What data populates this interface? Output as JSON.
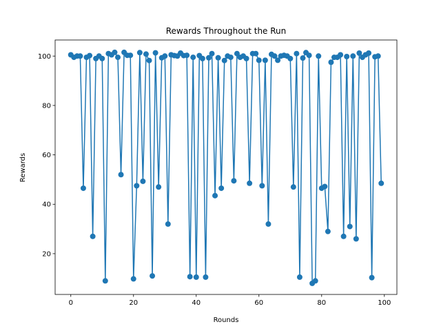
{
  "chart_data": {
    "type": "line",
    "title": "Rewards Throughout the Run",
    "xlabel": "Rounds",
    "ylabel": "Rewards",
    "xlim": [
      -5,
      104
    ],
    "ylim": [
      3.5,
      106.5
    ],
    "xticks": [
      0,
      20,
      40,
      60,
      80,
      100
    ],
    "yticks": [
      20,
      40,
      60,
      80,
      100
    ],
    "grid": false,
    "series": [
      {
        "color": "#1f77b4",
        "marker": "circle",
        "x": [
          0,
          1,
          2,
          3,
          4,
          5,
          6,
          7,
          8,
          9,
          10,
          11,
          12,
          13,
          14,
          15,
          16,
          17,
          18,
          19,
          20,
          21,
          22,
          23,
          24,
          25,
          26,
          27,
          28,
          29,
          30,
          31,
          32,
          33,
          34,
          35,
          36,
          37,
          38,
          39,
          40,
          41,
          42,
          43,
          44,
          45,
          46,
          47,
          48,
          49,
          50,
          51,
          52,
          53,
          54,
          55,
          56,
          57,
          58,
          59,
          60,
          61,
          62,
          63,
          64,
          65,
          66,
          67,
          68,
          69,
          70,
          71,
          72,
          73,
          74,
          75,
          76,
          77,
          78,
          79,
          80,
          81,
          82,
          83,
          84,
          85,
          86,
          87,
          88,
          89,
          90,
          91,
          92,
          93,
          94,
          95,
          96,
          97,
          98,
          99
        ],
        "y": [
          100.5,
          99.5,
          100,
          100,
          46.5,
          99.5,
          100.2,
          27,
          99,
          100,
          99,
          9,
          101,
          100.5,
          101.5,
          99.5,
          52,
          101.5,
          100.3,
          100.3,
          9.8,
          47.5,
          101.4,
          49.3,
          100.8,
          98.2,
          11,
          101.3,
          47,
          99.3,
          100,
          32,
          100.5,
          100.2,
          100,
          101.2,
          100.2,
          100.3,
          10.7,
          99.5,
          10.5,
          100.2,
          99,
          10.5,
          99.3,
          101,
          43.5,
          99.3,
          46.5,
          98.2,
          100,
          99.5,
          49.5,
          101,
          99.5,
          100,
          99,
          48.5,
          101,
          101,
          98.3,
          47.5,
          98.3,
          32,
          100.7,
          100,
          98.3,
          100,
          100.3,
          100,
          99,
          47,
          101,
          10.5,
          99.2,
          101.4,
          100.3,
          8,
          9,
          100,
          46.5,
          47.2,
          29,
          97.5,
          99.5,
          99.5,
          100.5,
          27,
          99.8,
          31,
          100,
          26,
          101.2,
          99.5,
          100.5,
          101.2,
          10.3,
          99.7,
          100,
          48.5
        ]
      }
    ]
  }
}
